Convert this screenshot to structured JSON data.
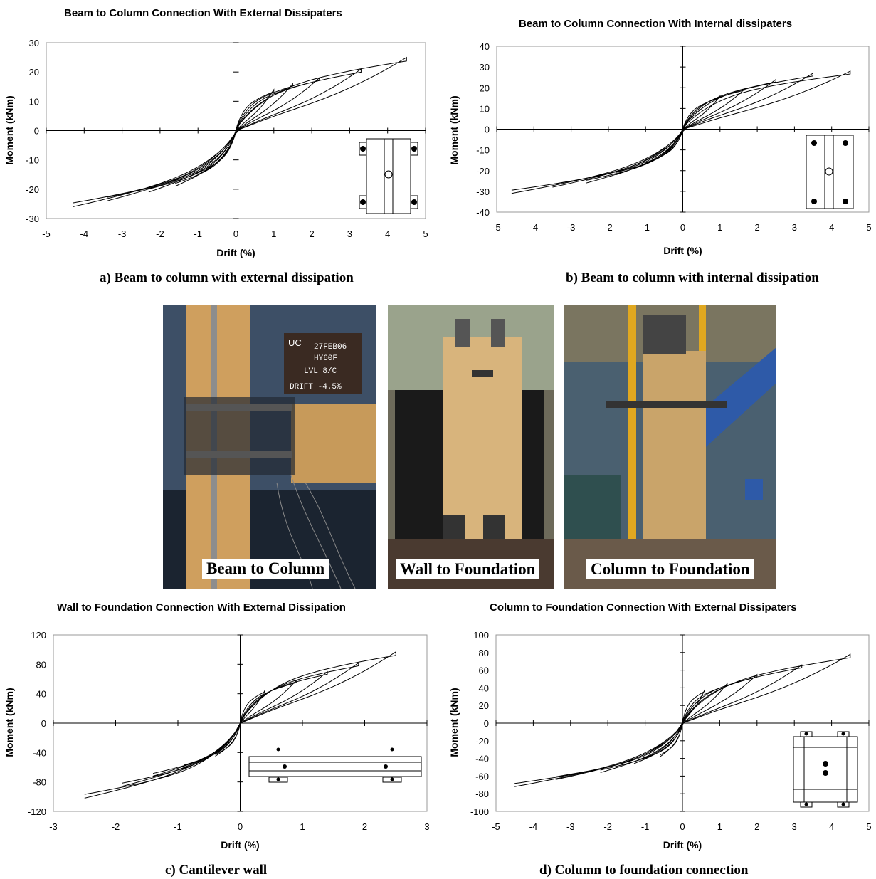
{
  "chart_data": [
    {
      "type": "line",
      "id": "a",
      "title": "Beam to Column Connection With External Dissipaters",
      "xlabel": "Drift (%)",
      "ylabel": "Moment (kNm)",
      "xlim": [
        -5,
        5
      ],
      "ylim": [
        -30,
        30
      ],
      "xticks": [
        "-5",
        "-4",
        "-3",
        "-2",
        "-1",
        "0",
        "1",
        "2",
        "3",
        "4",
        "5"
      ],
      "yticks": [
        "30",
        "20",
        "10",
        "0",
        "-10",
        "-20",
        "-30"
      ],
      "grid": false,
      "series": [
        {
          "x": [
            0,
            0.5,
            1.0,
            1.5,
            2.0,
            2.5,
            3.0,
            3.5,
            4.0,
            4.5
          ],
          "y": [
            2,
            9,
            15.5,
            18,
            19.5,
            21,
            22,
            23,
            24,
            25
          ]
        },
        {
          "x": [
            0,
            -0.5,
            -1.0,
            -1.5,
            -2.0,
            -2.5,
            -3.0,
            -3.5,
            -4.0,
            -4.3
          ],
          "y": [
            -2,
            -11,
            -17,
            -19.5,
            -21,
            -22,
            -23,
            -24,
            -25,
            -26
          ]
        }
      ],
      "cycle_peaks_pos": [
        [
          1,
          14
        ],
        [
          1.5,
          16
        ],
        [
          2.2,
          18
        ],
        [
          3.3,
          21
        ],
        [
          4.5,
          25
        ]
      ],
      "cycle_peaks_neg": [
        [
          -1,
          -15
        ],
        [
          -1.6,
          -19
        ],
        [
          -2.3,
          -21
        ],
        [
          -3.4,
          -24
        ],
        [
          -4.3,
          -26
        ]
      ],
      "caption": "a) Beam to column with external dissipation"
    },
    {
      "type": "line",
      "id": "b",
      "title": "Beam to Column Connection With Internal dissipaters",
      "xlabel": "Drift (%)",
      "ylabel": "Moment (kNm)",
      "xlim": [
        -5,
        5
      ],
      "ylim": [
        -40,
        40
      ],
      "xticks": [
        "-5",
        "-4",
        "-3",
        "-2",
        "-1",
        "0",
        "1",
        "2",
        "3",
        "4",
        "5"
      ],
      "yticks": [
        "40",
        "30",
        "20",
        "10",
        "0",
        "-10",
        "-20",
        "-30",
        "-40"
      ],
      "grid": false,
      "cycle_peaks_pos": [
        [
          1,
          16
        ],
        [
          1.7,
          20
        ],
        [
          2.5,
          24
        ],
        [
          3.5,
          27
        ],
        [
          4.5,
          28
        ]
      ],
      "cycle_peaks_neg": [
        [
          -1,
          -17
        ],
        [
          -1.8,
          -22
        ],
        [
          -2.6,
          -26
        ],
        [
          -3.5,
          -28
        ],
        [
          -4.6,
          -31
        ]
      ],
      "caption": "b) Beam to column with internal dissipation"
    },
    {
      "type": "line",
      "id": "c",
      "title": "Wall to Foundation Connection With External Dissipation",
      "xlabel": "Drift (%)",
      "ylabel": "Moment (kNm)",
      "xlim": [
        -3,
        3
      ],
      "ylim": [
        -120,
        120
      ],
      "xticks": [
        "-3",
        "-2",
        "-1",
        "0",
        "1",
        "2",
        "3"
      ],
      "yticks": [
        "120",
        "80",
        "40",
        "0",
        "-40",
        "-80",
        "-120"
      ],
      "grid": false,
      "cycle_peaks_pos": [
        [
          0.4,
          45
        ],
        [
          0.9,
          58
        ],
        [
          1.4,
          70
        ],
        [
          1.9,
          82
        ],
        [
          2.5,
          97
        ]
      ],
      "cycle_peaks_neg": [
        [
          -0.4,
          -45
        ],
        [
          -0.9,
          -60
        ],
        [
          -1.4,
          -72
        ],
        [
          -1.9,
          -86
        ],
        [
          -2.5,
          -102
        ]
      ],
      "caption": "c) Cantilever wall"
    },
    {
      "type": "line",
      "id": "d",
      "title": "Column to Foundation Connection With External Dissipaters",
      "xlabel": "Drift (%)",
      "ylabel": "Moment (kNm)",
      "xlim": [
        -5,
        5
      ],
      "ylim": [
        -100,
        100
      ],
      "xticks": [
        "-5",
        "-4",
        "-3",
        "-2",
        "-1",
        "0",
        "1",
        "2",
        "3",
        "4",
        "5"
      ],
      "yticks": [
        "100",
        "80",
        "60",
        "40",
        "20",
        "0",
        "-20",
        "-40",
        "-60",
        "-80",
        "-100"
      ],
      "grid": false,
      "cycle_peaks_pos": [
        [
          0.6,
          38
        ],
        [
          1.2,
          45
        ],
        [
          2.0,
          55
        ],
        [
          3.2,
          66
        ],
        [
          4.5,
          78
        ]
      ],
      "cycle_peaks_neg": [
        [
          -0.6,
          -38
        ],
        [
          -1.3,
          -46
        ],
        [
          -2.2,
          -56
        ],
        [
          -3.4,
          -64
        ],
        [
          -4.5,
          -72
        ]
      ],
      "caption": "d) Column to foundation connection"
    }
  ],
  "photos": {
    "beam_to_column": "Beam to Column",
    "wall_to_foundation": "Wall to Foundation",
    "column_to_foundation": "Column to Foundation",
    "sign_lines": [
      "27FEB06",
      "HY60F",
      "LVL  8/C",
      "DRIFT -4.5%"
    ],
    "sign_logo": "UC"
  },
  "colors": {
    "line": "#000000",
    "wood": "#c9a46a",
    "steel_blue": "#2e5aa8",
    "bg_dark": "#1a1a1a"
  }
}
